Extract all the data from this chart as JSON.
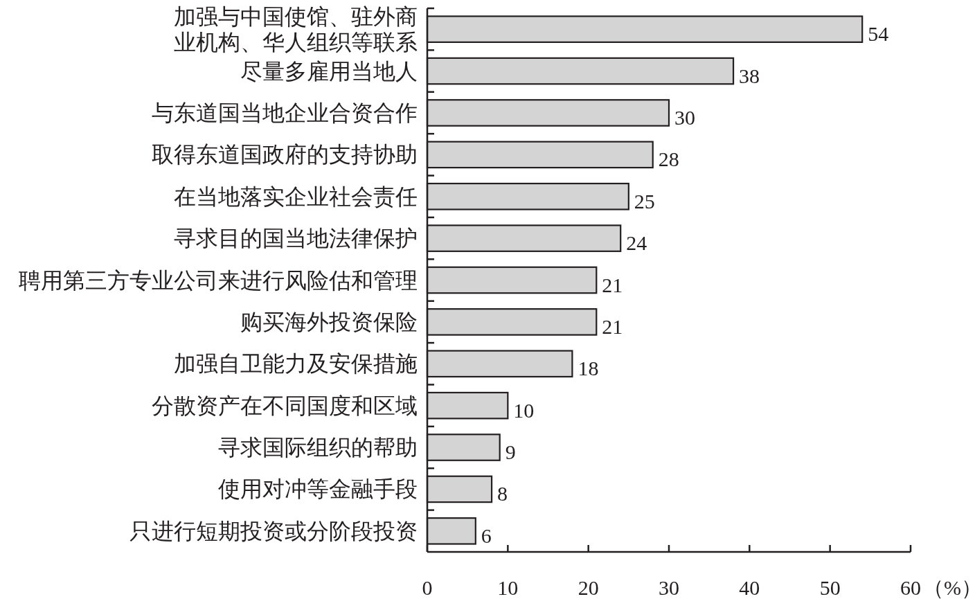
{
  "chart_data": {
    "type": "bar",
    "orientation": "horizontal",
    "categories": [
      "加强与中国使馆、驻外商业机构、华人组织等联系",
      "尽量多雇用当地人",
      "与东道国当地企业合资合作",
      "取得东道国政府的支持协助",
      "在当地落实企业社会责任",
      "寻求目的国当地法律保护",
      "聘用第三方专业公司来进行风险估和管理",
      "购买海外投资保险",
      "加强自卫能力及安保措施",
      "分散资产在不同国度和区域",
      "寻求国际组织的帮助",
      "使用对冲等金融手段",
      "只进行短期投资或分阶段投资"
    ],
    "values": [
      54,
      38,
      30,
      28,
      25,
      24,
      21,
      21,
      18,
      10,
      9,
      8,
      6
    ],
    "color": "#d4d4d4",
    "data_labels": true,
    "xlim": [
      0,
      60
    ],
    "xticks": [
      0,
      10,
      20,
      30,
      40,
      50,
      60
    ],
    "xlabel": "（%）"
  }
}
